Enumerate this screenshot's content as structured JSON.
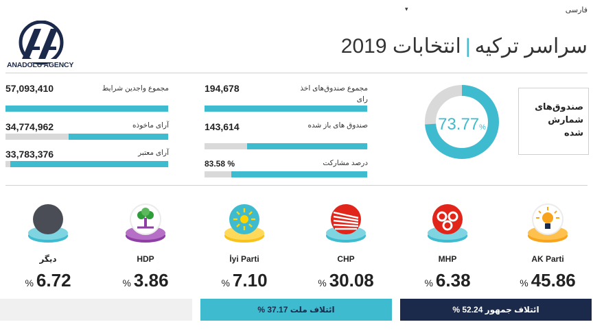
{
  "header": {
    "language": "فارسی",
    "title_main": "سراسر ترکیه",
    "title_sep": "|",
    "title_sub": "انتخابات 2019",
    "logo_text": "ANADOLU AGENCY",
    "logo_mark": "AA"
  },
  "stats": {
    "eligible_voters": {
      "label": "مجموع واجدین شرایط",
      "value": "57,093,410",
      "fraction": 1.0
    },
    "votes_cast": {
      "label": "آرای ماخوذه",
      "value": "34,774,962",
      "fraction": 0.61
    },
    "valid_votes": {
      "label": "آرای معتبر",
      "value": "33,783,376",
      "fraction": 0.97
    },
    "total_boxes": {
      "label": "مجموع صندوق‌های اخذ رای",
      "value": "194,678",
      "fraction": 1.0
    },
    "opened_boxes": {
      "label": "صندوق های باز شده",
      "value": "143,614",
      "fraction": 0.74
    },
    "turnout": {
      "label": "درصد مشارکت",
      "value": "83.58 %",
      "fraction": 0.8358
    }
  },
  "counted": {
    "value": "73.77",
    "unit": "%",
    "fraction": 0.7377,
    "label_lines": [
      "صندوق‌های",
      "شمارش",
      "شده"
    ]
  },
  "parties": [
    {
      "name": "AK Parti",
      "value": "45.86",
      "icon": "ak-parti-bulb-logo-icon",
      "color": "#f7a41c"
    },
    {
      "name": "MHP",
      "value": "6.38",
      "icon": "mhp-crescents-logo-icon",
      "color": "#e1251b"
    },
    {
      "name": "CHP",
      "value": "30.08",
      "icon": "chp-arrows-logo-icon",
      "color": "#e1251b"
    },
    {
      "name": "İyi Parti",
      "value": "7.10",
      "icon": "iyi-parti-sun-logo-icon",
      "color": "#3fbbd0"
    },
    {
      "name": "HDP",
      "value": "3.86",
      "icon": "hdp-tree-logo-icon",
      "color": "#8e3fa3"
    },
    {
      "name": "دیگر",
      "value": "6.72",
      "icon": "other-circle-icon",
      "color": "#3fbbd0"
    }
  ],
  "pct_sign": "%",
  "coalitions": {
    "people": "ائتلاف جمهور 52.24 %",
    "nation": "ائتلاف ملت 37.17 %",
    "other": ""
  },
  "colors": {
    "accent": "#3fbbd0",
    "navy": "#1b2a4a",
    "bar_bg": "#d9d9d9"
  }
}
